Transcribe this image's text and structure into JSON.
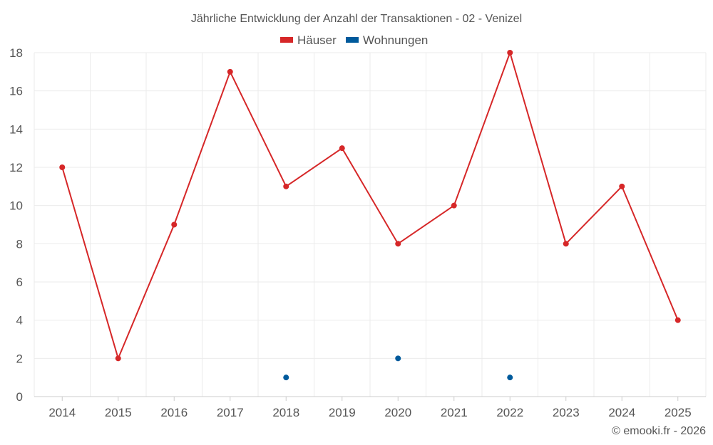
{
  "chart_data": {
    "type": "line",
    "title": "Jährliche Entwicklung der Anzahl der Transaktionen - 02 - Venizel",
    "categories": [
      "2014",
      "2015",
      "2016",
      "2017",
      "2018",
      "2019",
      "2020",
      "2021",
      "2022",
      "2023",
      "2024",
      "2025"
    ],
    "series": [
      {
        "name": "Häuser",
        "color": "#d62728",
        "line": true,
        "values": [
          12,
          2,
          9,
          17,
          11,
          13,
          8,
          10,
          18,
          8,
          11,
          4
        ]
      },
      {
        "name": "Wohnungen",
        "color": "#005a9c",
        "line": false,
        "values": [
          null,
          null,
          null,
          null,
          1,
          null,
          2,
          null,
          1,
          null,
          null,
          null
        ]
      }
    ],
    "ylim": [
      0,
      18
    ],
    "yticks": [
      0,
      2,
      4,
      6,
      8,
      10,
      12,
      14,
      16,
      18
    ],
    "grid": true,
    "legend_position": "top-center"
  },
  "credit": "© emooki.fr - 2026"
}
